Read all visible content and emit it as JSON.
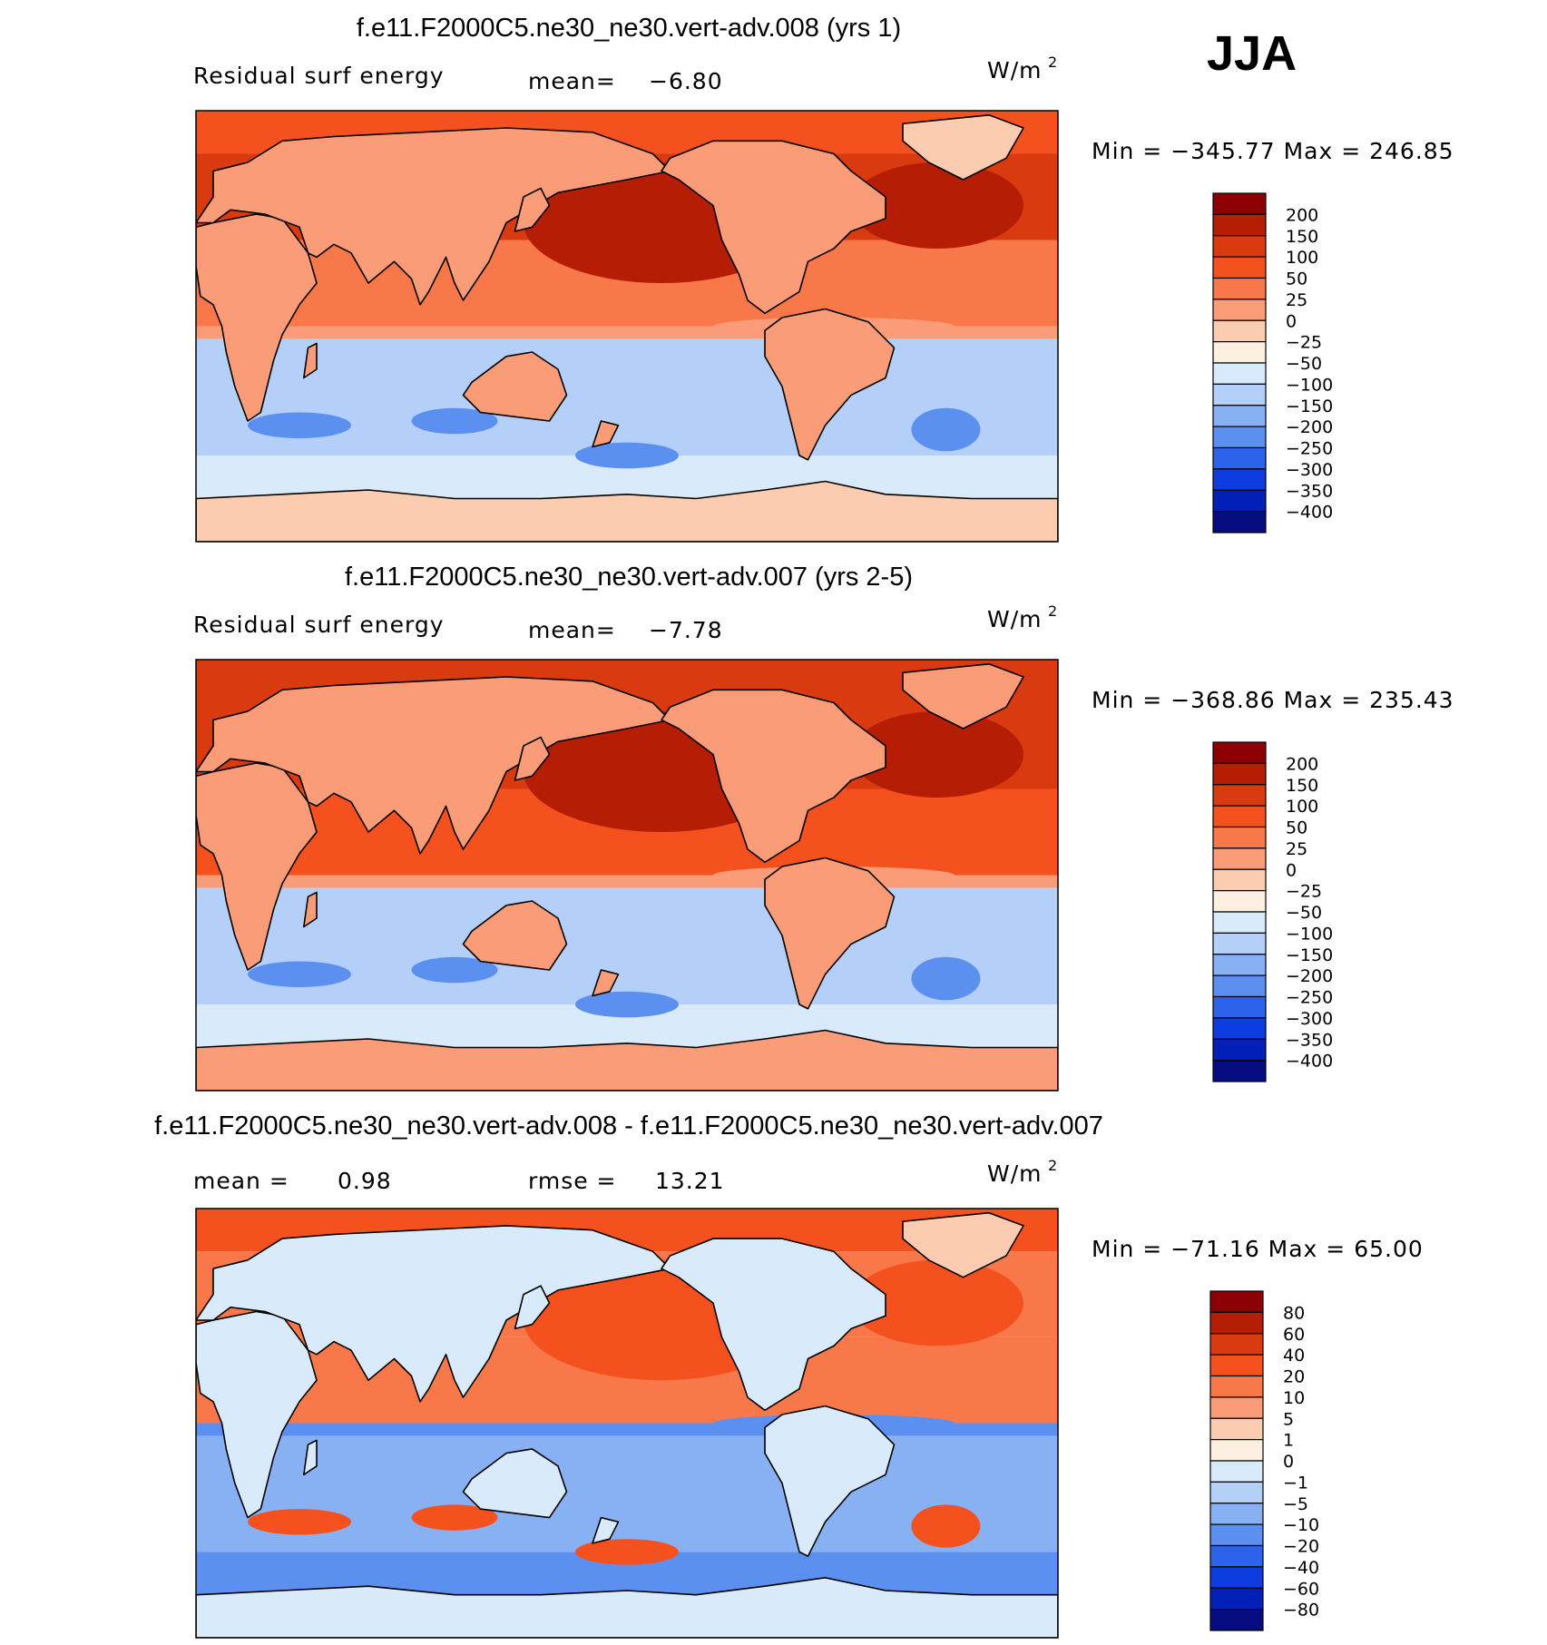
{
  "season": "JJA",
  "units_label": "W/m",
  "units_exp": "2",
  "chart_data": [
    {
      "type": "heatmap",
      "title": "f.e11.F2000C5.ne30_ne30.vert-adv.008 (yrs 1)",
      "variable": "Residual surf energy",
      "stat1_label": "mean=",
      "stat1_value": "−6.80",
      "minmax": "Min = −345.77 Max = 246.85",
      "colorbar": {
        "labels": [
          "200",
          "150",
          "100",
          "50",
          "25",
          "0",
          "−25",
          "−50",
          "−100",
          "−150",
          "−200",
          "−250",
          "−300",
          "−350",
          "−400"
        ],
        "colors": [
          "#8c0005",
          "#b51d05",
          "#d93a10",
          "#f5511e",
          "#f97849",
          "#fa9c78",
          "#fcccb0",
          "#fef0e0",
          "#d9eafa",
          "#b5d0f8",
          "#88b1f4",
          "#5c90f0",
          "#2d62ea",
          "#0d3ce0",
          "#0020b8",
          "#040c80"
        ]
      },
      "field": {
        "north_polar_ocean": "#f5511e",
        "arctic_ocean": "#f5511e",
        "north_atlantic": "#d93a10",
        "north_pacific": "#d93a10",
        "pacific_core": "#b51d05",
        "tropical_ocean": "#f97849",
        "equatorial_band": "#fa9c78",
        "southern_ocean": "#b5d0f8",
        "far_southern_ocean": "#d9eafa",
        "southern_blobs": "#5c90f0",
        "land": "#fa9c78",
        "antarctica": "#fcccb0",
        "greenland": "#fcccb0"
      }
    },
    {
      "type": "heatmap",
      "title": "f.e11.F2000C5.ne30_ne30.vert-adv.007 (yrs 2-5)",
      "variable": "Residual surf energy",
      "stat1_label": "mean=",
      "stat1_value": "−7.78",
      "minmax": "Min = −368.86 Max = 235.43",
      "colorbar": {
        "labels": [
          "200",
          "150",
          "100",
          "50",
          "25",
          "0",
          "−25",
          "−50",
          "−100",
          "−150",
          "−200",
          "−250",
          "−300",
          "−350",
          "−400"
        ],
        "colors": [
          "#8c0005",
          "#b51d05",
          "#d93a10",
          "#f5511e",
          "#f97849",
          "#fa9c78",
          "#fcccb0",
          "#fef0e0",
          "#d9eafa",
          "#b5d0f8",
          "#88b1f4",
          "#5c90f0",
          "#2d62ea",
          "#0d3ce0",
          "#0020b8",
          "#040c80"
        ]
      },
      "field": {
        "north_polar_ocean": "#d93a10",
        "arctic_ocean": "#f5511e",
        "north_atlantic": "#d93a10",
        "north_pacific": "#d93a10",
        "pacific_core": "#b51d05",
        "tropical_ocean": "#f5511e",
        "equatorial_band": "#fa9c78",
        "southern_ocean": "#b5d0f8",
        "far_southern_ocean": "#d9eafa",
        "southern_blobs": "#5c90f0",
        "land": "#fa9c78",
        "antarctica": "#fa9c78",
        "greenland": "#fa9c78"
      }
    },
    {
      "type": "heatmap",
      "title": "f.e11.F2000C5.ne30_ne30.vert-adv.008 - f.e11.F2000C5.ne30_ne30.vert-adv.007",
      "stat1_label": "mean =",
      "stat1_value": "0.98",
      "stat2_label": "rmse =",
      "stat2_value": "13.21",
      "minmax": "Min = −71.16 Max =  65.00",
      "colorbar": {
        "labels": [
          "80",
          "60",
          "40",
          "20",
          "10",
          "5",
          "1",
          "0",
          "−1",
          "−5",
          "−10",
          "−20",
          "−40",
          "−60",
          "−80"
        ],
        "colors": [
          "#8c0005",
          "#b51d05",
          "#d93a10",
          "#f5511e",
          "#f97849",
          "#fa9c78",
          "#fcccb0",
          "#fef0e0",
          "#d9eafa",
          "#b5d0f8",
          "#88b1f4",
          "#5c90f0",
          "#2d62ea",
          "#0d3ce0",
          "#0020b8",
          "#040c80"
        ]
      },
      "field": {
        "north_polar_ocean": "#f5511e",
        "arctic_ocean": "#b5d0f8",
        "north_atlantic": "#f97849",
        "north_pacific": "#88b1f4",
        "pacific_core": "#f5511e",
        "tropical_ocean": "#f97849",
        "equatorial_band": "#5c90f0",
        "southern_ocean": "#88b1f4",
        "far_southern_ocean": "#5c90f0",
        "southern_blobs": "#f5511e",
        "land": "#d9eafa",
        "antarctica": "#d9eafa",
        "greenland": "#fcccb0"
      }
    }
  ]
}
